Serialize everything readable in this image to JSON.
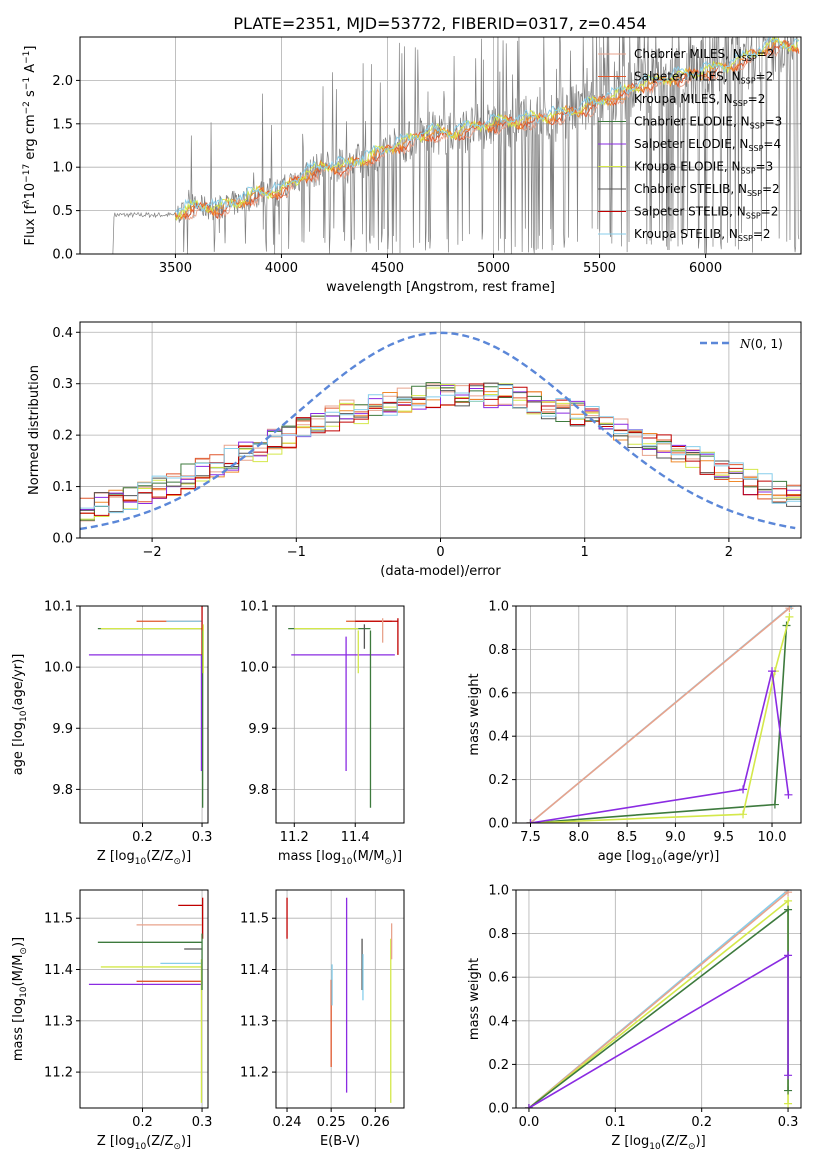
{
  "figure": {
    "title": "PLATE=2351, MJD=53772, FIBERID=0317, z=0.454"
  },
  "colors": {
    "spectrum": "#808080",
    "gauss": "#5b87d8",
    "models": {
      "Chabrier MILES": "#e8a38c",
      "Salpeter MILES": "#e0572c",
      "Kroupa MILES": "#f08a2c",
      "Chabrier ELODIE": "#3d7a3d",
      "Salpeter ELODIE": "#8a2be2",
      "Kroupa ELODIE": "#d4e84a",
      "Chabrier STELIB": "#555555",
      "Salpeter STELIB": "#c00000",
      "Kroupa STELIB": "#87ceeb"
    }
  },
  "chart_data": [
    {
      "id": "spectrum",
      "type": "line",
      "xlabel": "wavelength [Angstrom, rest frame]",
      "ylabel": "Flux [f$_\\lambda$10$^{-17}$ erg cm$^{-2}$ s$^{-1}$ A$^{-1}$]",
      "ylabel_parts": [
        "Flux [f",
        "λ",
        "10",
        "−17",
        " erg cm",
        "−2",
        " s",
        "−1",
        " A",
        "−1",
        "]"
      ],
      "xlim": [
        3050,
        6450
      ],
      "ylim": [
        0,
        2.5
      ],
      "xticks": [
        "3500",
        "4000",
        "4500",
        "5000",
        "5500",
        "6000"
      ],
      "xtick_values": [
        3500,
        4000,
        4500,
        5000,
        5500,
        6000
      ],
      "yticks": [
        "0.0",
        "0.5",
        "1.0",
        "1.5",
        "2.0"
      ],
      "ytick_values": [
        0,
        0.5,
        1.0,
        1.5,
        2.0
      ],
      "legend": {
        "placement": "top-right",
        "entries": [
          {
            "base": "Chabrier MILES, N",
            "sub": "SSP",
            "tail": "=2",
            "model": "Chabrier MILES"
          },
          {
            "base": "Salpeter MILES, N",
            "sub": "SSP",
            "tail": "=2",
            "model": "Salpeter MILES"
          },
          {
            "base": "Kroupa MILES, N",
            "sub": "SSP",
            "tail": "=2",
            "model": "Kroupa MILES"
          },
          {
            "base": "Chabrier ELODIE, N",
            "sub": "SSP",
            "tail": "=3",
            "model": "Chabrier ELODIE"
          },
          {
            "base": "Salpeter ELODIE, N",
            "sub": "SSP",
            "tail": "=4",
            "model": "Salpeter ELODIE"
          },
          {
            "base": "Kroupa ELODIE, N",
            "sub": "SSP",
            "tail": "=3",
            "model": "Kroupa ELODIE"
          },
          {
            "base": "Chabrier STELIB, N",
            "sub": "SSP",
            "tail": "=2",
            "model": "Chabrier STELIB"
          },
          {
            "base": "Salpeter STELIB, N",
            "sub": "SSP",
            "tail": "=2",
            "model": "Salpeter STELIB"
          },
          {
            "base": "Kroupa STELIB, N",
            "sub": "SSP",
            "tail": "=2",
            "model": "Kroupa STELIB"
          }
        ]
      },
      "model_trend": {
        "x": [
          3500,
          3600,
          3700,
          3800,
          3900,
          4000,
          4100,
          4200,
          4300,
          4400,
          4500,
          4600,
          4700,
          4800,
          4900,
          5000,
          5100,
          5200,
          5300,
          5400,
          5500,
          5600,
          5700,
          5800,
          5900,
          6000,
          6100,
          6200,
          6300
        ],
        "y": [
          0.45,
          0.55,
          0.52,
          0.6,
          0.7,
          0.72,
          0.9,
          1.0,
          1.0,
          1.1,
          1.2,
          1.3,
          1.4,
          1.38,
          1.45,
          1.5,
          1.52,
          1.55,
          1.6,
          1.65,
          1.75,
          1.85,
          1.95,
          2.0,
          2.05,
          2.1,
          2.15,
          2.25,
          2.4
        ]
      }
    },
    {
      "id": "residuals",
      "type": "line",
      "xlabel": "(data-model)/error",
      "ylabel": "Normed distribution",
      "xlim": [
        -2.5,
        2.5
      ],
      "ylim": [
        0,
        0.42
      ],
      "xticks": [
        "−2",
        "−1",
        "0",
        "1",
        "2"
      ],
      "xtick_values": [
        -2,
        -1,
        0,
        1,
        2
      ],
      "yticks": [
        "0.0",
        "0.1",
        "0.2",
        "0.3",
        "0.4"
      ],
      "ytick_values": [
        0,
        0.1,
        0.2,
        0.3,
        0.4
      ],
      "legend": {
        "placement": "top-right",
        "label_main": "N",
        "label_tail": "(0, 1)"
      },
      "gaussian": {
        "mean": 0,
        "sigma": 1
      }
    },
    {
      "id": "age-vs-Z",
      "type": "scatter",
      "xlabel_parts": [
        "Z [log",
        "10",
        "(Z/Z",
        "⊙",
        ")]"
      ],
      "ylabel_parts": [
        "age  [log",
        "10",
        "(age/yr)]"
      ],
      "xlim": [
        0.095,
        0.31
      ],
      "ylim": [
        9.745,
        10.1
      ],
      "xticks": [
        "0.2",
        "0.3"
      ],
      "xtick_values": [
        0.2,
        0.3
      ],
      "yticks": [
        "9.8",
        "9.9",
        "10.0",
        "10.1"
      ],
      "ytick_values": [
        9.8,
        9.9,
        10.0,
        10.1
      ],
      "hbars": [
        {
          "model": "Salpeter MILES",
          "y": 10.075,
          "x0": 0.19,
          "x1": 0.3
        },
        {
          "model": "Kroupa STELIB",
          "y": 10.075,
          "x0": 0.24,
          "x1": 0.3
        },
        {
          "model": "Chabrier ELODIE",
          "y": 10.063,
          "x0": 0.125,
          "x1": 0.3
        },
        {
          "model": "Kroupa ELODIE",
          "y": 10.063,
          "x0": 0.13,
          "x1": 0.3
        },
        {
          "model": "Salpeter ELODIE",
          "y": 10.02,
          "x0": 0.11,
          "x1": 0.3
        }
      ],
      "vbars": [
        {
          "model": "Salpeter STELIB",
          "x": 0.3,
          "y0": 10.0,
          "y1": 10.12
        },
        {
          "model": "Salpeter ELODIE",
          "x": 0.299,
          "y0": 9.83,
          "y1": 10.02
        },
        {
          "model": "Chabrier ELODIE",
          "x": 0.301,
          "y0": 9.77,
          "y1": 10.06
        },
        {
          "model": "Kroupa ELODIE",
          "x": 0.302,
          "y0": 9.99,
          "y1": 10.07
        }
      ]
    },
    {
      "id": "age-vs-mass",
      "type": "scatter",
      "xlabel_parts": [
        "mass [log",
        "10",
        "(M/M",
        "⊙",
        ")]"
      ],
      "xlim": [
        11.14,
        11.56
      ],
      "ylim": [
        9.745,
        10.1
      ],
      "xticks": [
        "11.2",
        "11.4"
      ],
      "xtick_values": [
        11.2,
        11.4
      ],
      "yticks": [
        "9.8",
        "9.9",
        "10.0",
        "10.1"
      ],
      "ytick_values": [
        9.8,
        9.9,
        10.0,
        10.1
      ],
      "hbars": [
        {
          "model": "Salpeter MILES",
          "y": 10.075,
          "x0": 11.37,
          "x1": 11.52
        },
        {
          "model": "Salpeter STELIB",
          "y": 10.075,
          "x0": 11.4,
          "x1": 11.54
        },
        {
          "model": "Chabrier ELODIE",
          "y": 10.063,
          "x0": 11.18,
          "x1": 11.45
        },
        {
          "model": "Kroupa ELODIE",
          "y": 10.063,
          "x0": 11.2,
          "x1": 11.41
        },
        {
          "model": "Salpeter ELODIE",
          "y": 10.02,
          "x0": 11.19,
          "x1": 11.53
        }
      ],
      "vbars": [
        {
          "model": "Salpeter ELODIE",
          "x": 11.37,
          "y0": 9.83,
          "y1": 10.05
        },
        {
          "model": "Chabrier ELODIE",
          "x": 11.45,
          "y0": 9.77,
          "y1": 10.06
        },
        {
          "model": "Kroupa ELODIE",
          "x": 11.41,
          "y0": 9.99,
          "y1": 10.06
        },
        {
          "model": "Chabrier MILES",
          "x": 11.49,
          "y0": 10.04,
          "y1": 10.08
        },
        {
          "model": "Salpeter STELIB",
          "x": 11.54,
          "y0": 10.02,
          "y1": 10.08
        },
        {
          "model": "Chabrier STELIB",
          "x": 11.43,
          "y0": 10.03,
          "y1": 10.07
        }
      ]
    },
    {
      "id": "weight-vs-age",
      "type": "line",
      "xlabel_parts": [
        "age  [log",
        "10",
        "(age/yr)]"
      ],
      "ylabel": "mass weight",
      "xlim": [
        7.35,
        10.3
      ],
      "ylim": [
        0,
        1.0
      ],
      "xticks": [
        "7.5",
        "8.0",
        "8.5",
        "9.0",
        "9.5",
        "10.0"
      ],
      "xtick_values": [
        7.5,
        8.0,
        8.5,
        9.0,
        9.5,
        10.0
      ],
      "yticks": [
        "0.0",
        "0.2",
        "0.4",
        "0.6",
        "0.8",
        "1.0"
      ],
      "ytick_values": [
        0,
        0.2,
        0.4,
        0.6,
        0.8,
        1.0
      ],
      "series": [
        {
          "model": "Kroupa STELIB",
          "x": [
            7.5,
            10.2
          ],
          "y": [
            0.0,
            1.0
          ]
        },
        {
          "model": "Chabrier MILES",
          "x": [
            7.5,
            10.18
          ],
          "y": [
            0.0,
            0.99
          ]
        },
        {
          "model": "Chabrier ELODIE",
          "x": [
            7.5,
            10.03,
            10.15
          ],
          "y": [
            0.0,
            0.085,
            0.91
          ]
        },
        {
          "model": "Kroupa ELODIE",
          "x": [
            7.5,
            9.7,
            10.03,
            10.18
          ],
          "y": [
            0.0,
            0.04,
            0.7,
            0.95
          ]
        },
        {
          "model": "Salpeter ELODIE",
          "x": [
            7.5,
            9.7,
            10.0,
            10.17
          ],
          "y": [
            0.0,
            0.155,
            0.7,
            0.13
          ]
        }
      ]
    },
    {
      "id": "mass-vs-Z",
      "type": "scatter",
      "xlabel_parts": [
        "Z [log",
        "10",
        "(Z/Z",
        "⊙",
        ")]"
      ],
      "ylabel_parts": [
        "mass [log",
        "10",
        "(M/M",
        "⊙",
        ")]"
      ],
      "xlim": [
        0.095,
        0.31
      ],
      "ylim": [
        11.13,
        11.555
      ],
      "xticks": [
        "0.2",
        "0.3"
      ],
      "xtick_values": [
        0.2,
        0.3
      ],
      "yticks": [
        "11.2",
        "11.3",
        "11.4",
        "11.5"
      ],
      "ytick_values": [
        11.2,
        11.3,
        11.4,
        11.5
      ],
      "hbars": [
        {
          "model": "Salpeter STELIB",
          "y": 11.525,
          "x0": 0.26,
          "x1": 0.3
        },
        {
          "model": "Chabrier MILES",
          "y": 11.487,
          "x0": 0.19,
          "x1": 0.3
        },
        {
          "model": "Chabrier ELODIE",
          "y": 11.453,
          "x0": 0.125,
          "x1": 0.3
        },
        {
          "model": "Chabrier STELIB",
          "y": 11.44,
          "x0": 0.27,
          "x1": 0.3
        },
        {
          "model": "Kroupa STELIB",
          "y": 11.412,
          "x0": 0.23,
          "x1": 0.3
        },
        {
          "model": "Kroupa ELODIE",
          "y": 11.405,
          "x0": 0.13,
          "x1": 0.3
        },
        {
          "model": "Salpeter MILES",
          "y": 11.377,
          "x0": 0.19,
          "x1": 0.3
        },
        {
          "model": "Salpeter ELODIE",
          "y": 11.371,
          "x0": 0.11,
          "x1": 0.3
        }
      ],
      "vbars": [
        {
          "model": "Salpeter STELIB",
          "x": 0.301,
          "y0": 11.46,
          "y1": 11.54
        },
        {
          "model": "Kroupa ELODIE",
          "x": 0.299,
          "y0": 11.14,
          "y1": 11.42
        },
        {
          "model": "Chabrier ELODIE",
          "x": 0.3,
          "y0": 11.36,
          "y1": 11.47
        }
      ]
    },
    {
      "id": "mass-vs-ebv",
      "type": "scatter",
      "xlabel": "E(B-V)",
      "xlim": [
        0.2375,
        0.2665
      ],
      "ylim": [
        11.13,
        11.555
      ],
      "xticks": [
        "0.24",
        "0.25",
        "0.26"
      ],
      "xtick_values": [
        0.24,
        0.25,
        0.26
      ],
      "yticks": [
        "11.2",
        "11.3",
        "11.4",
        "11.5"
      ],
      "ytick_values": [
        11.2,
        11.3,
        11.4,
        11.5
      ],
      "vbars": [
        {
          "model": "Salpeter STELIB",
          "x": 0.24,
          "y0": 11.46,
          "y1": 11.54
        },
        {
          "model": "Salpeter MILES",
          "x": 0.25,
          "y0": 11.21,
          "y1": 11.38
        },
        {
          "model": "Kroupa STELIB",
          "x": 0.2502,
          "y0": 11.33,
          "y1": 11.41
        },
        {
          "model": "Salpeter ELODIE",
          "x": 0.2535,
          "y0": 11.16,
          "y1": 11.54
        },
        {
          "model": "Chabrier STELIB",
          "x": 0.257,
          "y0": 11.36,
          "y1": 11.46
        },
        {
          "model": "Kroupa STELIB",
          "x": 0.2572,
          "y0": 11.34,
          "y1": 11.43
        },
        {
          "model": "Kroupa ELODIE",
          "x": 0.2635,
          "y0": 11.14,
          "y1": 11.46
        },
        {
          "model": "Chabrier MILES",
          "x": 0.2637,
          "y0": 11.42,
          "y1": 11.49
        }
      ]
    },
    {
      "id": "weight-vs-Z",
      "type": "line",
      "xlabel_parts": [
        "Z [log",
        "10",
        "(Z/Z",
        "⊙",
        ")]"
      ],
      "ylabel": "mass weight",
      "xlim": [
        -0.015,
        0.315
      ],
      "ylim": [
        0,
        1.0
      ],
      "xticks": [
        "0.0",
        "0.1",
        "0.2",
        "0.3"
      ],
      "xtick_values": [
        0,
        0.1,
        0.2,
        0.3
      ],
      "yticks": [
        "0.0",
        "0.2",
        "0.4",
        "0.6",
        "0.8",
        "1.0"
      ],
      "ytick_values": [
        0,
        0.2,
        0.4,
        0.6,
        0.8,
        1.0
      ],
      "series": [
        {
          "model": "Kroupa STELIB",
          "x": [
            0.0,
            0.3
          ],
          "y": [
            0.0,
            1.0
          ]
        },
        {
          "model": "Chabrier MILES",
          "x": [
            0.0,
            0.3
          ],
          "y": [
            0.0,
            0.99
          ]
        },
        {
          "model": "Kroupa ELODIE",
          "x": [
            0.0,
            0.3,
            0.3
          ],
          "y": [
            0.0,
            0.95,
            0.02
          ]
        },
        {
          "model": "Chabrier ELODIE",
          "x": [
            0.0,
            0.3,
            0.3
          ],
          "y": [
            0.0,
            0.91,
            0.08
          ]
        },
        {
          "model": "Salpeter ELODIE",
          "x": [
            0.0,
            0.3,
            0.3
          ],
          "y": [
            0.0,
            0.7,
            0.15
          ]
        }
      ]
    }
  ]
}
